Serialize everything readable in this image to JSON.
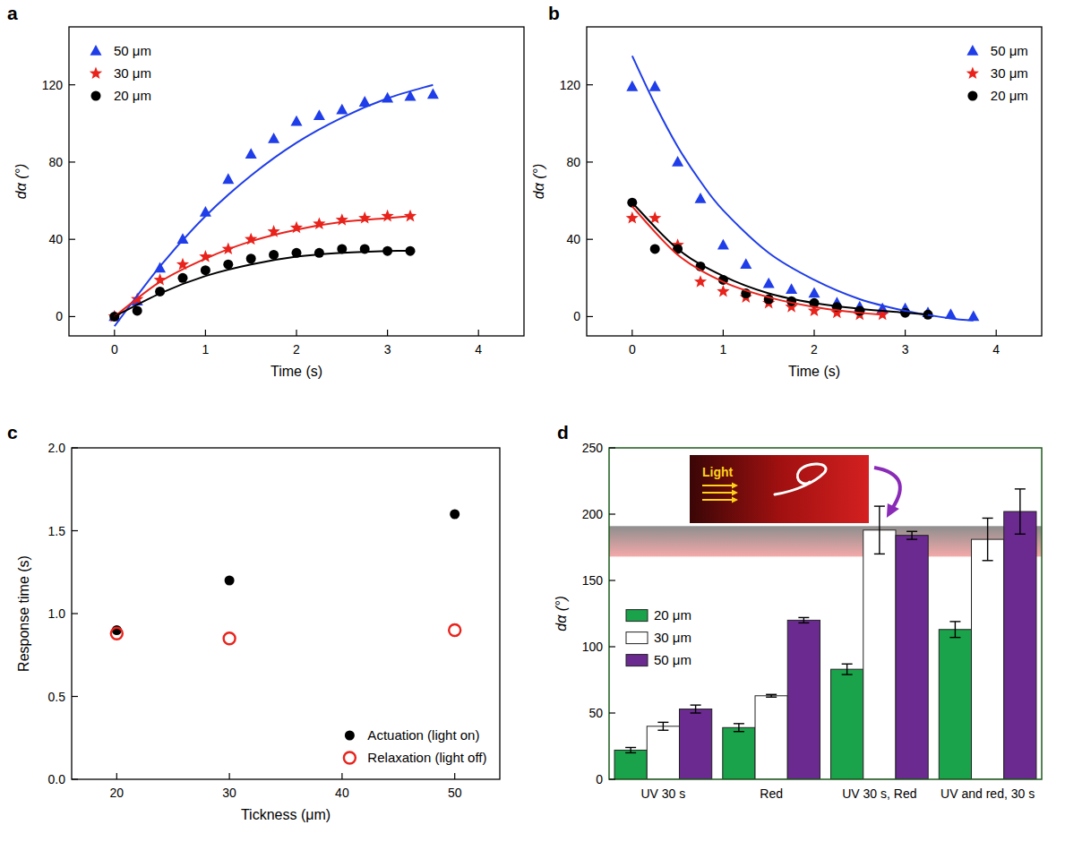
{
  "chart_data": [
    {
      "panel": "a",
      "type": "scatter",
      "x_label": "Time (s)",
      "y_label": "dα (°)",
      "xlim": [
        -0.5,
        4.5
      ],
      "ylim": [
        -10,
        150
      ],
      "xticks": [
        0,
        1,
        2,
        3,
        4
      ],
      "yticks": [
        0,
        40,
        80,
        120
      ],
      "legend": "upper left",
      "series": [
        {
          "name": "50 μm",
          "color": "#1f3de8",
          "marker": "triangle",
          "x": [
            0,
            0.25,
            0.5,
            0.75,
            1,
            1.25,
            1.5,
            1.75,
            2,
            2.25,
            2.5,
            2.75,
            3,
            3.25,
            3.5
          ],
          "values": [
            0,
            8,
            25,
            40,
            54,
            71,
            84,
            92,
            101,
            104,
            107,
            111,
            113,
            114,
            115
          ]
        },
        {
          "name": "30 μm",
          "color": "#e8231c",
          "marker": "star",
          "x": [
            0,
            0.25,
            0.5,
            0.75,
            1,
            1.25,
            1.5,
            1.75,
            2,
            2.25,
            2.5,
            2.75,
            3,
            3.25
          ],
          "values": [
            0,
            9,
            19,
            27,
            31,
            35,
            40,
            44,
            46,
            48,
            50,
            51,
            52,
            52
          ]
        },
        {
          "name": "20 μm",
          "color": "#000000",
          "marker": "circle",
          "x": [
            0,
            0.25,
            0.5,
            0.75,
            1,
            1.25,
            1.5,
            1.75,
            2,
            2.25,
            2.5,
            2.75,
            3,
            3.25
          ],
          "values": [
            0,
            3,
            13,
            20,
            24,
            27,
            30,
            32,
            33,
            33,
            35,
            35,
            34,
            34
          ]
        },
        {
          "type": "line",
          "color": "#1f3de8",
          "line_style": "solid",
          "x": [
            0,
            0.5,
            1,
            1.5,
            2,
            2.5,
            3,
            3.5
          ],
          "values": [
            -5,
            26,
            52,
            73,
            90,
            103,
            113,
            120
          ]
        },
        {
          "type": "line",
          "color": "#e8231c",
          "line_style": "solid",
          "x": [
            0,
            0.5,
            1,
            1.5,
            2,
            2.5,
            3,
            3.25
          ],
          "values": [
            0,
            18,
            30,
            39,
            45,
            49,
            51,
            52
          ]
        },
        {
          "type": "line",
          "color": "#000000",
          "line_style": "solid",
          "x": [
            0,
            0.5,
            1,
            1.5,
            2,
            2.5,
            3,
            3.25
          ],
          "values": [
            0,
            12,
            21,
            27,
            31,
            33,
            34,
            34
          ]
        }
      ]
    },
    {
      "panel": "b",
      "type": "scatter",
      "x_label": "Time (s)",
      "y_label": "dα (°)",
      "xlim": [
        -0.5,
        4.5
      ],
      "ylim": [
        -10,
        150
      ],
      "xticks": [
        0,
        1,
        2,
        3,
        4
      ],
      "yticks": [
        0,
        40,
        80,
        120
      ],
      "legend": "upper right",
      "series": [
        {
          "name": "50 μm",
          "color": "#1f3de8",
          "marker": "triangle",
          "x": [
            0,
            0.25,
            0.5,
            0.75,
            1,
            1.25,
            1.5,
            1.75,
            2,
            2.25,
            2.5,
            2.75,
            3,
            3.25,
            3.5,
            3.75
          ],
          "values": [
            119,
            119,
            80,
            61,
            37,
            27,
            17,
            14,
            12,
            7,
            5,
            4,
            4,
            2,
            1,
            0
          ]
        },
        {
          "name": "30 μm",
          "color": "#e8231c",
          "marker": "star",
          "x": [
            0,
            0.25,
            0.5,
            0.75,
            1,
            1.25,
            1.5,
            1.75,
            2,
            2.25,
            2.5,
            2.75
          ],
          "values": [
            51,
            51,
            37,
            18,
            13,
            10,
            7,
            5,
            3,
            2,
            1,
            1
          ]
        },
        {
          "name": "20 μm",
          "color": "#000000",
          "marker": "circle",
          "x": [
            0,
            0.25,
            0.5,
            0.75,
            1,
            1.25,
            1.5,
            1.75,
            2,
            2.25,
            2.5,
            3,
            3.25
          ],
          "values": [
            59,
            35,
            35,
            26,
            19,
            12,
            9,
            8,
            7,
            5,
            3,
            2,
            1
          ]
        },
        {
          "type": "line",
          "color": "#1f3de8",
          "line_style": "solid",
          "x": [
            0,
            0.25,
            0.5,
            0.75,
            1,
            1.5,
            2,
            2.5,
            3,
            3.5,
            3.75
          ],
          "values": [
            135,
            110,
            88,
            70,
            55,
            33,
            19,
            9,
            3,
            -1,
            -2
          ]
        },
        {
          "type": "line",
          "color": "#e8231c",
          "line_style": "solid",
          "x": [
            0,
            0.5,
            1,
            1.5,
            2,
            2.5,
            2.75
          ],
          "values": [
            57,
            32,
            18,
            10,
            5,
            2,
            1
          ]
        },
        {
          "type": "line",
          "color": "#000000",
          "line_style": "solid",
          "x": [
            0,
            0.5,
            1,
            1.5,
            2,
            2.5,
            3,
            3.25
          ],
          "values": [
            59,
            35,
            21,
            12,
            7,
            4,
            2,
            1
          ]
        }
      ]
    },
    {
      "panel": "c",
      "type": "scatter",
      "x_label": "Tickness (μm)",
      "y_label": "Response time (s)",
      "xlim": [
        16,
        54
      ],
      "ylim": [
        0,
        2
      ],
      "xticks": [
        20,
        30,
        40,
        50
      ],
      "yticks": [
        {
          "value": 0,
          "label": "0.0"
        },
        0.5,
        {
          "value": 1,
          "label": "1.0"
        },
        1.5,
        {
          "value": 2,
          "label": "2.0"
        }
      ],
      "legend": "lower right",
      "series": [
        {
          "name": "Actuation (light on)",
          "color": "#000000",
          "marker": "circle",
          "x": [
            20,
            30,
            50
          ],
          "values": [
            0.9,
            1.2,
            1.6
          ]
        },
        {
          "name": "Relaxation (light off)",
          "color": "#e8231c",
          "marker": "open_circle",
          "x": [
            20,
            30,
            50
          ],
          "values": [
            0.88,
            0.85,
            0.9
          ]
        }
      ]
    },
    {
      "panel": "d",
      "type": "bar",
      "y_label": "dα (°)",
      "categories": [
        "UV 30 s",
        "Red",
        "UV 30 s, Red",
        "UV and red, 30 s"
      ],
      "ylim": [
        0,
        250
      ],
      "yticks": [
        0,
        50,
        100,
        150,
        200,
        250
      ],
      "legend": "upper left",
      "band": [
        168,
        191
      ],
      "annotations": [
        "Light"
      ],
      "series": [
        {
          "name": "20 μm",
          "color": "#1aa34a",
          "values": [
            22,
            39,
            83,
            113
          ],
          "errors": [
            2,
            3,
            4,
            6
          ]
        },
        {
          "name": "30 μm",
          "color": "#ffffff",
          "values": [
            40,
            63,
            188,
            181
          ],
          "errors": [
            3,
            1,
            18,
            16
          ]
        },
        {
          "name": "50 μm",
          "color": "#6a2a8f",
          "values": [
            53,
            120,
            184,
            202
          ],
          "errors": [
            3,
            2,
            3,
            17
          ]
        }
      ]
    }
  ]
}
